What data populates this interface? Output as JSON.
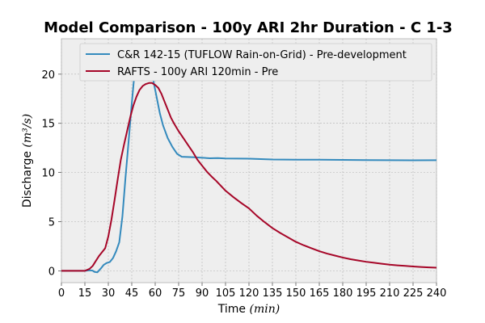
{
  "chart_data": {
    "type": "line",
    "title": "Model Comparison - 100y ARI 2hr Duration - C 1-3",
    "xlabel_main": "Time ",
    "xlabel_unit": "(min)",
    "ylabel_main": "Discharge ",
    "ylabel_unit": "(m³/s)",
    "xlim": [
      0,
      240
    ],
    "ylim": [
      -1.2,
      23.6
    ],
    "xticks": [
      0,
      15,
      30,
      45,
      60,
      75,
      90,
      105,
      120,
      135,
      150,
      165,
      180,
      195,
      210,
      225,
      240
    ],
    "yticks": [
      0,
      5,
      10,
      15,
      20
    ],
    "grid": true,
    "legend_position": "top-right",
    "series": [
      {
        "name": "C&R 142-15 (TUFLOW Rain-on-Grid) - Pre-development",
        "color": "#348ABD",
        "points": [
          [
            0,
            0
          ],
          [
            15,
            0
          ],
          [
            18,
            0.05
          ],
          [
            20,
            0.02
          ],
          [
            21,
            -0.1
          ],
          [
            23,
            -0.15
          ],
          [
            25,
            0.2
          ],
          [
            27,
            0.6
          ],
          [
            29,
            0.8
          ],
          [
            31,
            0.9
          ],
          [
            33,
            1.3
          ],
          [
            35,
            2.0
          ],
          [
            37,
            2.9
          ],
          [
            39,
            5.5
          ],
          [
            41,
            9.5
          ],
          [
            43,
            13.2
          ],
          [
            45,
            17.0
          ],
          [
            47,
            20.5
          ],
          [
            49,
            22.0
          ],
          [
            51,
            22.6
          ],
          [
            53,
            22.5
          ],
          [
            55,
            21.8
          ],
          [
            57,
            20.8
          ],
          [
            59,
            19.2
          ],
          [
            61,
            17.6
          ],
          [
            63,
            16.0
          ],
          [
            65,
            14.8
          ],
          [
            68,
            13.5
          ],
          [
            71,
            12.6
          ],
          [
            74,
            11.9
          ],
          [
            77,
            11.6
          ],
          [
            85,
            11.55
          ],
          [
            95,
            11.45
          ],
          [
            100,
            11.47
          ],
          [
            105,
            11.43
          ],
          [
            120,
            11.4
          ],
          [
            135,
            11.32
          ],
          [
            150,
            11.3
          ],
          [
            165,
            11.3
          ],
          [
            180,
            11.28
          ],
          [
            195,
            11.26
          ],
          [
            210,
            11.25
          ],
          [
            225,
            11.24
          ],
          [
            240,
            11.25
          ]
        ]
      },
      {
        "name": "RAFTS - 100y ARI 120min - Pre",
        "color": "#A60628",
        "points": [
          [
            0,
            0
          ],
          [
            15,
            0
          ],
          [
            18,
            0.2
          ],
          [
            20,
            0.5
          ],
          [
            22,
            1.0
          ],
          [
            24,
            1.5
          ],
          [
            26,
            1.9
          ],
          [
            28,
            2.3
          ],
          [
            30,
            3.5
          ],
          [
            32,
            5.2
          ],
          [
            34,
            7.2
          ],
          [
            36,
            9.3
          ],
          [
            38,
            11.3
          ],
          [
            40,
            12.8
          ],
          [
            42,
            14.2
          ],
          [
            44,
            15.6
          ],
          [
            46,
            16.8
          ],
          [
            48,
            17.7
          ],
          [
            50,
            18.4
          ],
          [
            52,
            18.8
          ],
          [
            54,
            19.0
          ],
          [
            56,
            19.1
          ],
          [
            58,
            19.1
          ],
          [
            60,
            18.9
          ],
          [
            62,
            18.6
          ],
          [
            64,
            18.0
          ],
          [
            66,
            17.2
          ],
          [
            68,
            16.4
          ],
          [
            70,
            15.6
          ],
          [
            72,
            15.0
          ],
          [
            75,
            14.2
          ],
          [
            78,
            13.5
          ],
          [
            81,
            12.8
          ],
          [
            84,
            12.1
          ],
          [
            87,
            11.3
          ],
          [
            90,
            10.7
          ],
          [
            93,
            10.1
          ],
          [
            96,
            9.6
          ],
          [
            99,
            9.15
          ],
          [
            102,
            8.65
          ],
          [
            105,
            8.15
          ],
          [
            110,
            7.5
          ],
          [
            115,
            6.9
          ],
          [
            120,
            6.35
          ],
          [
            125,
            5.6
          ],
          [
            130,
            4.95
          ],
          [
            135,
            4.35
          ],
          [
            140,
            3.85
          ],
          [
            145,
            3.4
          ],
          [
            150,
            2.95
          ],
          [
            155,
            2.6
          ],
          [
            160,
            2.3
          ],
          [
            165,
            2.0
          ],
          [
            170,
            1.75
          ],
          [
            175,
            1.55
          ],
          [
            180,
            1.35
          ],
          [
            185,
            1.18
          ],
          [
            190,
            1.05
          ],
          [
            195,
            0.92
          ],
          [
            200,
            0.82
          ],
          [
            205,
            0.72
          ],
          [
            210,
            0.63
          ],
          [
            215,
            0.56
          ],
          [
            220,
            0.5
          ],
          [
            225,
            0.44
          ],
          [
            230,
            0.39
          ],
          [
            235,
            0.35
          ],
          [
            240,
            0.32
          ]
        ]
      }
    ]
  }
}
